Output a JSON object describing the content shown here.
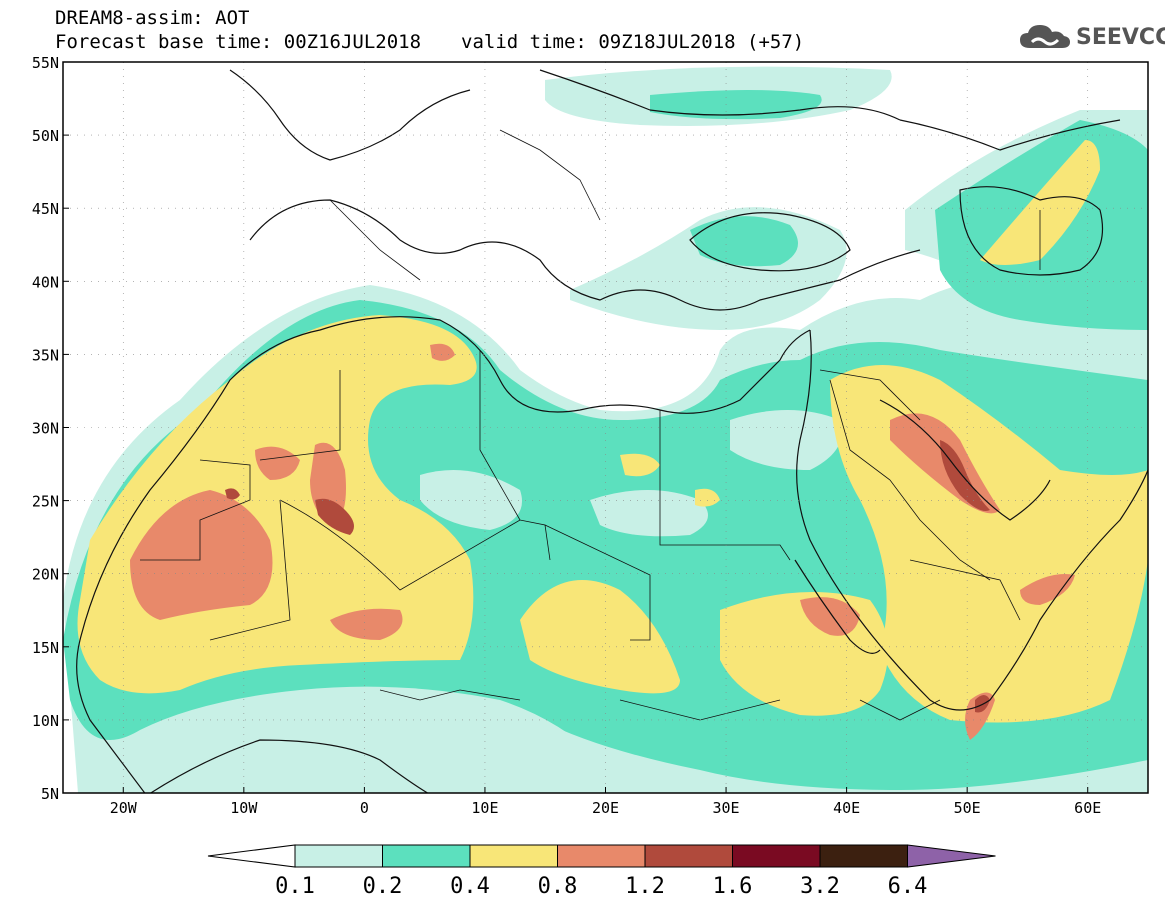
{
  "title": {
    "line1": "DREAM8-assim: AOT",
    "base_time": "Forecast base time: 00Z16JUL2018",
    "valid_time": "valid time: 09Z18JUL2018 (+57)"
  },
  "logo": {
    "text": "SEEVCCC",
    "icon": "cloud-icon"
  },
  "map": {
    "lon_range": [
      -25,
      65
    ],
    "lat_range": [
      5,
      55
    ],
    "lat_ticks": [
      "55N",
      "50N",
      "45N",
      "40N",
      "35N",
      "30N",
      "25N",
      "20N",
      "15N",
      "10N",
      "5N"
    ],
    "lon_ticks": [
      "20W",
      "10W",
      "0",
      "10E",
      "20E",
      "30E",
      "40E",
      "50E",
      "60E"
    ]
  },
  "legend": {
    "levels": [
      "0.1",
      "0.2",
      "0.4",
      "0.8",
      "1.2",
      "1.6",
      "3.2",
      "6.4"
    ],
    "colors": [
      "#ffffff",
      "#c8f0e6",
      "#5ce0be",
      "#f8e678",
      "#e8896a",
      "#b04a3c",
      "#7a0a22",
      "#3c2010",
      "#8e62a8"
    ]
  }
}
